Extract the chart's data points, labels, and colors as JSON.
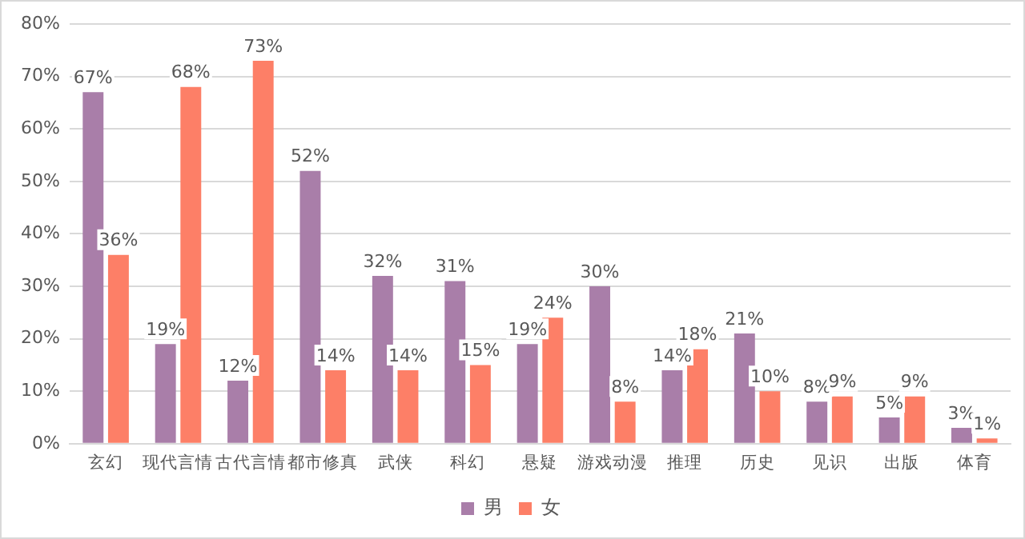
{
  "chart_data": {
    "type": "bar",
    "categories": [
      "玄幻",
      "现代言情",
      "古代言情",
      "都市修真",
      "武侠",
      "科幻",
      "悬疑",
      "游戏动漫",
      "推理",
      "历史",
      "见识",
      "出版",
      "体育"
    ],
    "series": [
      {
        "name": "男",
        "color": "#a97ea9",
        "values": [
          67,
          19,
          12,
          52,
          32,
          31,
          19,
          30,
          14,
          21,
          8,
          5,
          3
        ],
        "value_labels": [
          "67%",
          "19%",
          "12%",
          "52%",
          "32%",
          "31%",
          "19%",
          "30%",
          "14%",
          "21%",
          "8%",
          "5%",
          "3%"
        ]
      },
      {
        "name": "女",
        "color": "#fd7f67",
        "values": [
          36,
          68,
          73,
          14,
          14,
          15,
          24,
          8,
          18,
          10,
          9,
          9,
          1
        ],
        "value_labels": [
          "36%",
          "68%",
          "73%",
          "14%",
          "14%",
          "15%",
          "24%",
          "8%",
          "18%",
          "10%",
          "9%",
          "9%",
          "1%"
        ]
      }
    ],
    "ylim": [
      0,
      80
    ],
    "yticks": [
      {
        "value": 0,
        "label": "0%"
      },
      {
        "value": 10,
        "label": "10%"
      },
      {
        "value": 20,
        "label": "20%"
      },
      {
        "value": 30,
        "label": "30%"
      },
      {
        "value": 40,
        "label": "40%"
      },
      {
        "value": 50,
        "label": "50%"
      },
      {
        "value": 60,
        "label": "60%"
      },
      {
        "value": 70,
        "label": "70%"
      },
      {
        "value": 80,
        "label": "80%"
      }
    ],
    "grid": "y",
    "legend": "bottom"
  }
}
